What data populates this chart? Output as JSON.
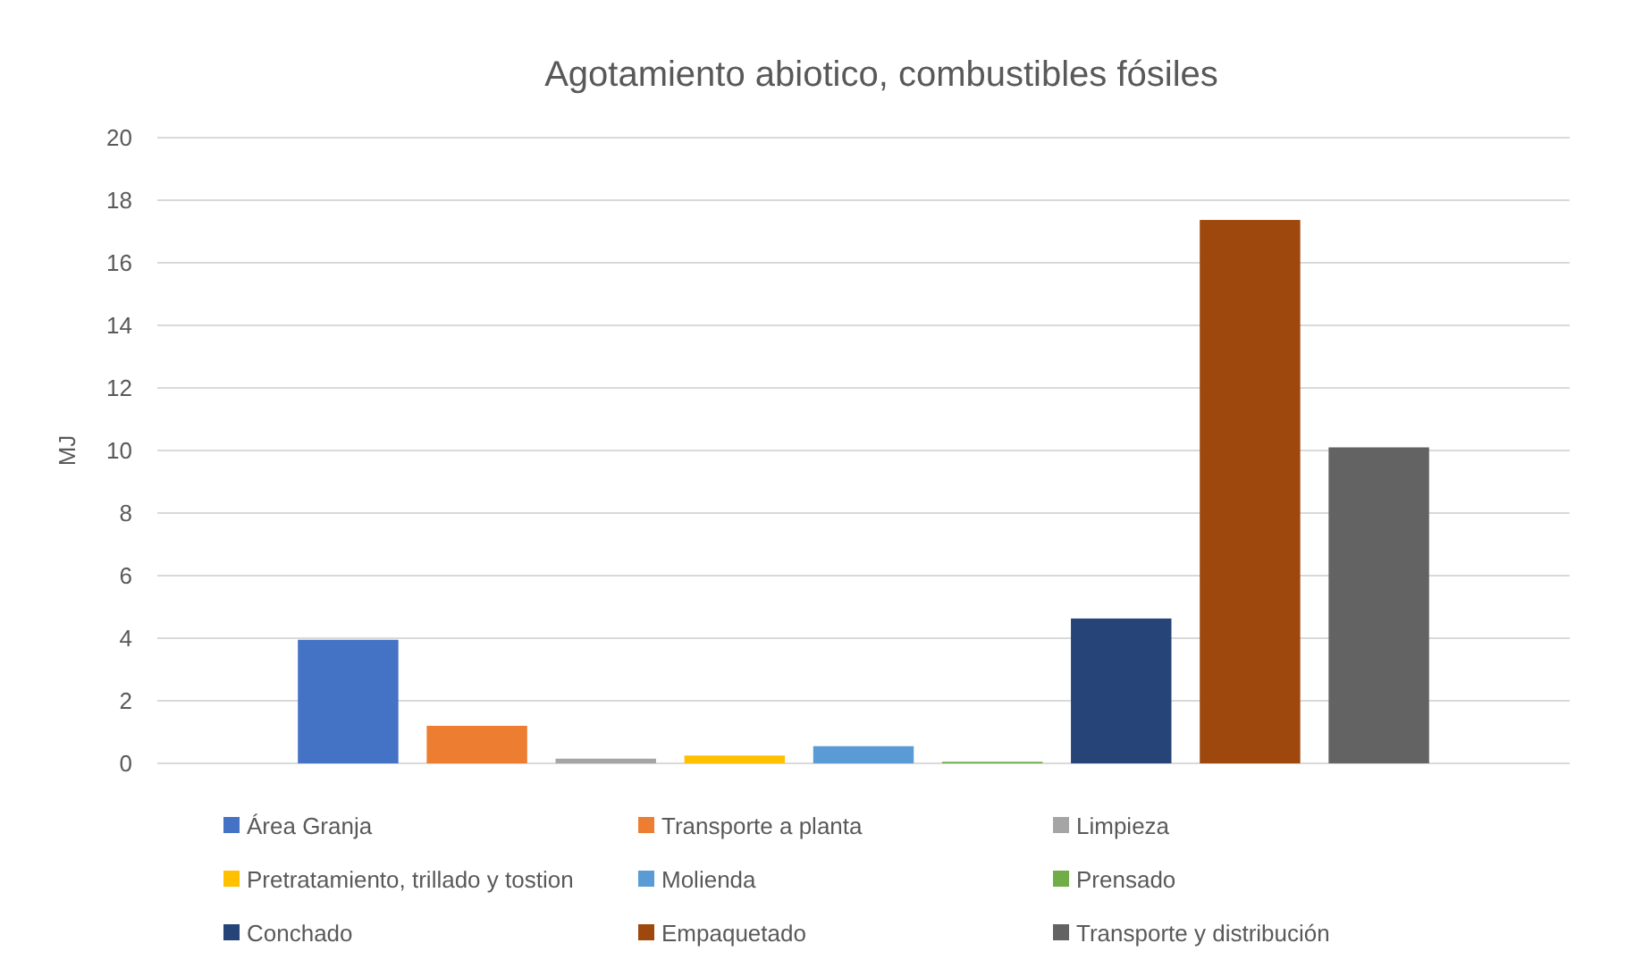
{
  "chart_data": {
    "type": "bar",
    "title": "Agotamiento abiotico, combustibles fósiles",
    "ylabel": "MJ",
    "categories": [
      null
    ],
    "series": [
      {
        "name": "Área Granja",
        "color": "#4472c4",
        "values": [
          3.95
        ]
      },
      {
        "name": "Transporte a planta",
        "color": "#ed7d31",
        "values": [
          1.2
        ]
      },
      {
        "name": "Limpieza",
        "color": "#a5a5a5",
        "values": [
          0.15
        ]
      },
      {
        "name": "Pretratamiento, trillado y tostion",
        "color": "#ffc000",
        "values": [
          0.25
        ]
      },
      {
        "name": "Molienda",
        "color": "#5b9bd5",
        "values": [
          0.55
        ]
      },
      {
        "name": "Prensado",
        "color": "#70ad47",
        "values": [
          0.05
        ]
      },
      {
        "name": "Conchado",
        "color": "#264478",
        "values": [
          4.63
        ]
      },
      {
        "name": "Empaquetado",
        "color": "#9e480e",
        "values": [
          17.37
        ]
      },
      {
        "name": "Transporte y distribución",
        "color": "#636363",
        "values": [
          10.1
        ]
      }
    ],
    "ylim": [
      0,
      20
    ],
    "yticks": [
      0,
      2,
      4,
      6,
      8,
      10,
      12,
      14,
      16,
      18,
      20
    ],
    "grid": "y",
    "legend": "bottom"
  }
}
